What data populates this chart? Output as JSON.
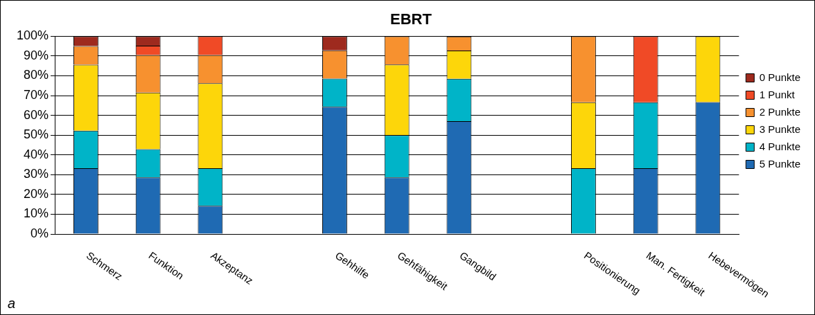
{
  "chart_data": {
    "type": "bar",
    "title": "EBRT",
    "stacked": true,
    "categories": [
      "Schmerz",
      "Funktion",
      "Akzeptanz",
      null,
      "Gehhilfe",
      "Gehfähigkeit",
      "Gangbild",
      null,
      "Positionierung",
      "Man. Fertigkeit",
      "Hebevermögen"
    ],
    "series": [
      {
        "name": "5 Punkte",
        "color": "#1f6ab3",
        "values": [
          33.3,
          28.6,
          14.3,
          null,
          64.3,
          28.6,
          57.1,
          null,
          0,
          33.3,
          66.7
        ]
      },
      {
        "name": "4 Punkte",
        "color": "#00b4c8",
        "values": [
          19.0,
          14.3,
          19.0,
          null,
          14.3,
          21.4,
          21.4,
          null,
          33.3,
          33.3,
          0
        ]
      },
      {
        "name": "3 Punkte",
        "color": "#fdd60a",
        "values": [
          33.3,
          28.6,
          42.9,
          null,
          0,
          35.7,
          14.3,
          null,
          33.3,
          0,
          33.3
        ]
      },
      {
        "name": "2 Punkte",
        "color": "#f7912f",
        "values": [
          9.5,
          19.0,
          14.3,
          null,
          14.3,
          14.3,
          7.1,
          null,
          33.4,
          0,
          0
        ]
      },
      {
        "name": "1 Punkt",
        "color": "#f04a26",
        "values": [
          0,
          4.7,
          9.5,
          null,
          0,
          0,
          0,
          null,
          0,
          33.4,
          0
        ]
      },
      {
        "name": "0 Punkte",
        "color": "#9e2a1e",
        "values": [
          4.9,
          4.8,
          0,
          null,
          7.1,
          0,
          0,
          null,
          0,
          0,
          0
        ]
      }
    ],
    "ylim": [
      0,
      100
    ],
    "yticks": [
      {
        "value": 0,
        "label": "0%"
      },
      {
        "value": 10,
        "label": "10%"
      },
      {
        "value": 20,
        "label": "20%"
      },
      {
        "value": 30,
        "label": "30%"
      },
      {
        "value": 40,
        "label": "40%"
      },
      {
        "value": 50,
        "label": "50%"
      },
      {
        "value": 60,
        "label": "60%"
      },
      {
        "value": 70,
        "label": "70%"
      },
      {
        "value": 80,
        "label": "80%"
      },
      {
        "value": 90,
        "label": "90%"
      },
      {
        "value": 100,
        "label": "100%"
      }
    ],
    "grid": "y",
    "legend": "right",
    "annotations": [
      "a"
    ]
  }
}
